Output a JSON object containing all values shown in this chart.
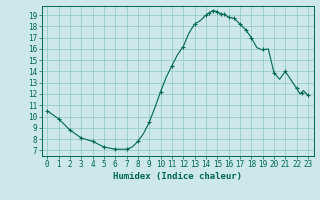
{
  "xlabel": "Humidex (Indice chaleur)",
  "bg_color": "#cce8e8",
  "grid_color": "#99cccc",
  "line_color": "#006655",
  "marker_color": "#006655",
  "xlim": [
    -0.5,
    23.5
  ],
  "ylim": [
    6.5,
    19.8
  ],
  "yticks": [
    7,
    8,
    9,
    10,
    11,
    12,
    13,
    14,
    15,
    16,
    17,
    18,
    19
  ],
  "xticks": [
    0,
    1,
    2,
    3,
    4,
    5,
    6,
    7,
    8,
    9,
    10,
    11,
    12,
    13,
    14,
    15,
    16,
    17,
    18,
    19,
    20,
    21,
    22,
    23
  ],
  "x": [
    0,
    1,
    2,
    3,
    4,
    5,
    6,
    7,
    7.5,
    8,
    8.5,
    9,
    9.5,
    10,
    10.5,
    11,
    11.5,
    12,
    12.5,
    13,
    13.5,
    14,
    14.3,
    14.6,
    15,
    15.3,
    15.6,
    16,
    16.5,
    17,
    17.5,
    18,
    18.5,
    19,
    19.5,
    20,
    20.5,
    21,
    22,
    22.3,
    22.6,
    23
  ],
  "y": [
    10.5,
    9.8,
    8.8,
    8.1,
    7.8,
    7.3,
    7.1,
    7.1,
    7.3,
    7.8,
    8.5,
    9.5,
    10.8,
    12.2,
    13.5,
    14.5,
    15.5,
    16.2,
    17.4,
    18.2,
    18.5,
    19.0,
    19.2,
    19.4,
    19.3,
    19.1,
    19.05,
    18.8,
    18.7,
    18.2,
    17.7,
    17.0,
    16.1,
    15.9,
    16.0,
    13.9,
    13.3,
    14.0,
    12.5,
    12.0,
    12.3,
    11.9
  ],
  "marker_x": [
    0,
    1,
    2,
    3,
    4,
    5,
    6,
    7,
    8,
    9,
    10,
    11,
    12,
    13,
    14,
    14.3,
    14.6,
    15,
    15.3,
    15.6,
    16,
    16.5,
    17,
    17.5,
    18,
    19,
    20,
    21,
    22,
    22.5,
    23
  ],
  "marker_y": [
    10.5,
    9.8,
    8.8,
    8.1,
    7.8,
    7.3,
    7.1,
    7.1,
    7.8,
    9.5,
    12.2,
    14.5,
    16.2,
    18.2,
    19.0,
    19.2,
    19.4,
    19.3,
    19.1,
    19.05,
    18.8,
    18.7,
    18.2,
    17.7,
    17.0,
    16.0,
    13.9,
    14.0,
    12.5,
    12.1,
    11.9
  ]
}
